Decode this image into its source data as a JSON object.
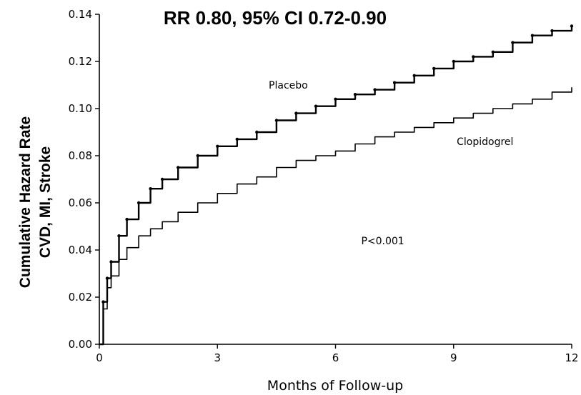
{
  "chart_data": {
    "type": "line",
    "title": "RR 0.80, 95% CI 0.72-0.90",
    "xlabel": "Months of Follow-up",
    "ylabel": [
      "Cumulative Hazard Rate",
      "CVD, MI, Stroke"
    ],
    "xlim": [
      0,
      12
    ],
    "ylim": [
      0,
      0.14
    ],
    "x_ticks": [
      0,
      3,
      6,
      9,
      12
    ],
    "x_tick_labels": [
      "0",
      "3",
      "6",
      "9",
      "12"
    ],
    "y_ticks": [
      0.0,
      0.02,
      0.04,
      0.06,
      0.08,
      0.1,
      0.12,
      0.14
    ],
    "y_tick_labels": [
      "0.00",
      "0.02",
      "0.04",
      "0.06",
      "0.08",
      "0.10",
      "0.12",
      "0.14"
    ],
    "grid": false,
    "series": [
      {
        "name": "Placebo",
        "style": "marked",
        "x": [
          0,
          0.1,
          0.2,
          0.3,
          0.5,
          0.7,
          1.0,
          1.3,
          1.6,
          2.0,
          2.5,
          3.0,
          3.5,
          4.0,
          4.5,
          5.0,
          5.5,
          6.0,
          6.5,
          7.0,
          7.5,
          8.0,
          8.5,
          9.0,
          9.5,
          10.0,
          10.5,
          11.0,
          11.5,
          12.0
        ],
        "values": [
          0.0,
          0.018,
          0.028,
          0.035,
          0.046,
          0.053,
          0.06,
          0.066,
          0.07,
          0.075,
          0.08,
          0.084,
          0.087,
          0.09,
          0.095,
          0.098,
          0.101,
          0.104,
          0.106,
          0.108,
          0.111,
          0.114,
          0.117,
          0.12,
          0.122,
          0.124,
          0.128,
          0.131,
          0.133,
          0.135
        ]
      },
      {
        "name": "Clopidogrel",
        "style": "plain",
        "x": [
          0,
          0.1,
          0.2,
          0.3,
          0.5,
          0.7,
          1.0,
          1.3,
          1.6,
          2.0,
          2.5,
          3.0,
          3.5,
          4.0,
          4.5,
          5.0,
          5.5,
          6.0,
          6.5,
          7.0,
          7.5,
          8.0,
          8.5,
          9.0,
          9.5,
          10.0,
          10.5,
          11.0,
          11.5,
          12.0
        ],
        "values": [
          0.0,
          0.015,
          0.024,
          0.029,
          0.036,
          0.041,
          0.046,
          0.049,
          0.052,
          0.056,
          0.06,
          0.064,
          0.068,
          0.071,
          0.075,
          0.078,
          0.08,
          0.082,
          0.085,
          0.088,
          0.09,
          0.092,
          0.094,
          0.096,
          0.098,
          0.1,
          0.102,
          0.104,
          0.107,
          0.109
        ]
      }
    ],
    "annotations": [
      {
        "text": "Placebo",
        "x": 4.8,
        "y": 0.1085
      },
      {
        "text": "Clopidogrel",
        "x": 9.8,
        "y": 0.0845
      },
      {
        "text": "P<0.001",
        "x": 7.2,
        "y": 0.0425
      }
    ]
  }
}
